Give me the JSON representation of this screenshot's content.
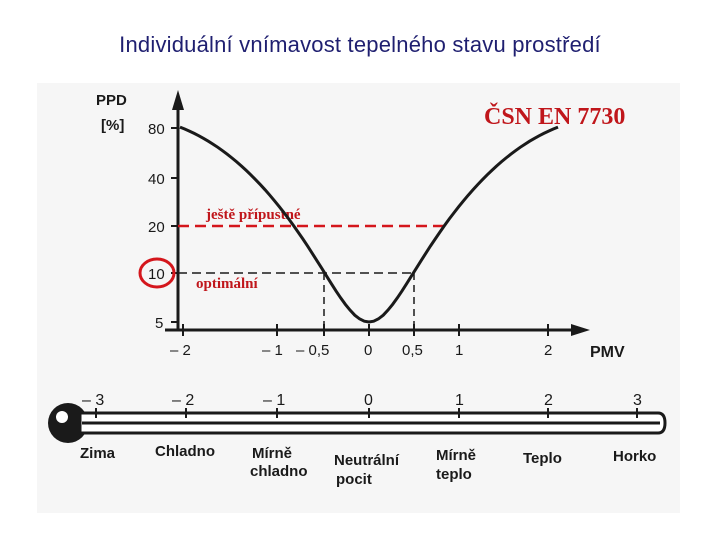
{
  "title": "Individuální vnímavost tepelného stavu prostředí",
  "standard": "ČSN EN 7730",
  "chart_data": {
    "type": "line",
    "ylabel_line1": "PPD",
    "ylabel_line2": "[%]",
    "xlabel": "PMV",
    "y_ticks": [
      "80",
      "40",
      "20",
      "10",
      "5"
    ],
    "x_ticks": [
      "– 2",
      "– 1",
      "– 0,5",
      "0",
      "0,5",
      "1",
      "2"
    ],
    "highlighted_tick": "10",
    "annotations": {
      "acceptable": "ještě přípustné",
      "optimal": "optimální"
    },
    "series": [
      {
        "x": [
          -2,
          -1.5,
          -1,
          -0.5,
          0,
          0.5,
          1,
          1.5,
          2
        ],
        "y": [
          76.8,
          51.7,
          26.1,
          10.2,
          5,
          10.2,
          26.1,
          51.7,
          76.8
        ]
      }
    ]
  },
  "thermometer": {
    "scale": [
      "– 3",
      "– 2",
      "– 1",
      "0",
      "1",
      "2",
      "3"
    ],
    "labels": [
      {
        "line1": "Zima",
        "line2": ""
      },
      {
        "line1": "Chladno",
        "line2": ""
      },
      {
        "line1": "Mírně",
        "line2": "chladno"
      },
      {
        "line1": "Neutrální",
        "line2": "pocit"
      },
      {
        "line1": "Mírně",
        "line2": "teplo"
      },
      {
        "line1": "Teplo",
        "line2": ""
      },
      {
        "line1": "Horko",
        "line2": ""
      }
    ]
  }
}
